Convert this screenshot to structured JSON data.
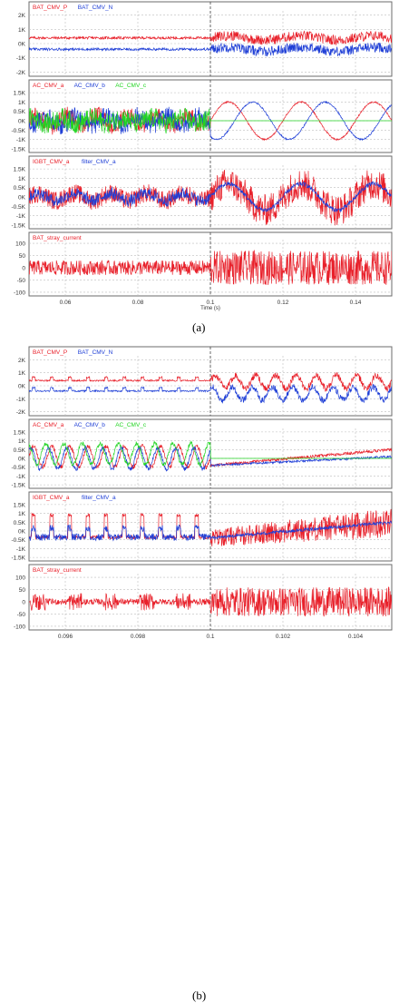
{
  "figures": [
    {
      "caption": "(a)",
      "xaxis": {
        "label": "Time (s)",
        "ticks": [
          "0.06",
          "0.08",
          "0.1",
          "0.12",
          "0.14"
        ],
        "tick_values": [
          0.06,
          0.08,
          0.1,
          0.12,
          0.14
        ],
        "range": [
          0.05,
          0.15
        ],
        "event": 0.1
      },
      "panels": [
        {
          "legend": [
            {
              "text": "BAT_CMV_P",
              "color": "#e8202a"
            },
            {
              "text": "BAT_CMV_N",
              "color": "#1e3ed6"
            }
          ],
          "yticks": [
            "2K",
            "1K",
            "0K",
            "-1K",
            "-2K"
          ],
          "ytick_values": [
            2000,
            1000,
            0,
            -1000,
            -2000
          ],
          "ylim": [
            -2300,
            2300
          ]
        },
        {
          "legend": [
            {
              "text": "AC_CMV_a",
              "color": "#e8202a"
            },
            {
              "text": "AC_CMV_b",
              "color": "#1e3ed6"
            },
            {
              "text": "AC_CMV_c",
              "color": "#22d422"
            }
          ],
          "yticks": [
            "1.5K",
            "1K",
            "0.5K",
            "0K",
            "-0.5K",
            "-1K",
            "-1.5K"
          ],
          "ytick_values": [
            1500,
            1000,
            500,
            0,
            -500,
            -1000,
            -1500
          ],
          "ylim": [
            -1700,
            1700
          ]
        },
        {
          "legend": [
            {
              "text": "IGBT_CMV_a",
              "color": "#e8202a"
            },
            {
              "text": "filter_CMV_a",
              "color": "#1e3ed6"
            }
          ],
          "yticks": [
            "1.5K",
            "1K",
            "0.5K",
            "0K",
            "-0.5K",
            "-1K",
            "-1.5K"
          ],
          "ytick_values": [
            1500,
            1000,
            500,
            0,
            -500,
            -1000,
            -1500
          ],
          "ylim": [
            -1700,
            1700
          ]
        },
        {
          "legend": [
            {
              "text": "BAT_stray_current",
              "color": "#e8202a"
            }
          ],
          "yticks": [
            "100",
            "50",
            "0",
            "-50",
            "-100"
          ],
          "ytick_values": [
            100,
            50,
            0,
            -50,
            -100
          ],
          "ylim": [
            -115,
            115
          ]
        }
      ]
    },
    {
      "caption": "(b)",
      "xaxis": {
        "label": "",
        "ticks": [
          "0.096",
          "0.098",
          "0.1",
          "0.102",
          "0.104"
        ],
        "tick_values": [
          0.096,
          0.098,
          0.1,
          0.102,
          0.104
        ],
        "range": [
          0.095,
          0.105
        ],
        "event": 0.1
      },
      "panels": [
        {
          "legend": [
            {
              "text": "BAT_CMV_P",
              "color": "#e8202a"
            },
            {
              "text": "BAT_CMV_N",
              "color": "#1e3ed6"
            }
          ],
          "yticks": [
            "2K",
            "1K",
            "0K",
            "-1K",
            "-2K"
          ],
          "ytick_values": [
            2000,
            1000,
            0,
            -1000,
            -2000
          ],
          "ylim": [
            -2300,
            2300
          ]
        },
        {
          "legend": [
            {
              "text": "AC_CMV_a",
              "color": "#e8202a"
            },
            {
              "text": "AC_CMV_b",
              "color": "#1e3ed6"
            },
            {
              "text": "AC_CMV_c",
              "color": "#22d422"
            }
          ],
          "yticks": [
            "1.5K",
            "1K",
            "0.5K",
            "0K",
            "-0.5K",
            "-1K",
            "-1.5K"
          ],
          "ytick_values": [
            1500,
            1000,
            500,
            0,
            -500,
            -1000,
            -1500
          ],
          "ylim": [
            -1700,
            1700
          ]
        },
        {
          "legend": [
            {
              "text": "IGBT_CMV_a",
              "color": "#e8202a"
            },
            {
              "text": "filter_CMV_a",
              "color": "#1e3ed6"
            }
          ],
          "yticks": [
            "1.5K",
            "1K",
            "0.5K",
            "0K",
            "-0.5K",
            "-1K",
            "-1.5K"
          ],
          "ytick_values": [
            1500,
            1000,
            500,
            0,
            -500,
            -1000,
            -1500
          ],
          "ylim": [
            -1700,
            1700
          ]
        },
        {
          "legend": [
            {
              "text": "BAT_stray_current",
              "color": "#e8202a"
            }
          ],
          "yticks": [
            "100",
            "50",
            "0",
            "-50",
            "-100"
          ],
          "ytick_values": [
            100,
            50,
            0,
            -50,
            -100
          ],
          "ylim": [
            -115,
            115
          ]
        }
      ]
    }
  ],
  "chart_data": [
    {
      "type": "line",
      "title": "",
      "xlabel": "Time (s)",
      "xlim": [
        0.05,
        0.15
      ],
      "event_x": 0.1,
      "series": [
        {
          "name": "BAT_CMV_P",
          "mean_before": 400,
          "mean_after": 400
        },
        {
          "name": "BAT_CMV_N",
          "mean_before": -400,
          "mean_after": -400
        }
      ],
      "ylim": [
        -2300,
        2300
      ]
    },
    {
      "type": "line",
      "title": "",
      "xlabel": "Time (s)",
      "xlim": [
        0.05,
        0.15
      ],
      "series": [
        {
          "name": "AC_CMV_a",
          "amplitude_after": 1000
        },
        {
          "name": "AC_CMV_b",
          "amplitude_after": 1000
        },
        {
          "name": "AC_CMV_c",
          "value_after": 0
        }
      ],
      "ylim": [
        -1700,
        1700
      ]
    },
    {
      "type": "line",
      "title": "",
      "xlabel": "Time (s)",
      "xlim": [
        0.05,
        0.15
      ],
      "series": [
        {
          "name": "IGBT_CMV_a"
        },
        {
          "name": "filter_CMV_a",
          "amplitude_after": 700
        }
      ],
      "ylim": [
        -1700,
        1700
      ]
    },
    {
      "type": "line",
      "title": "",
      "xlabel": "Time (s)",
      "xlim": [
        0.05,
        0.15
      ],
      "series": [
        {
          "name": "BAT_stray_current",
          "peak_before": 30,
          "peak_after": 70
        }
      ],
      "ylim": [
        -115,
        115
      ]
    },
    {
      "type": "line",
      "title": "",
      "xlabel": "",
      "xlim": [
        0.095,
        0.105
      ],
      "series": [
        {
          "name": "BAT_CMV_P"
        },
        {
          "name": "BAT_CMV_N"
        }
      ],
      "ylim": [
        -2300,
        2300
      ]
    },
    {
      "type": "line",
      "title": "",
      "xlabel": "",
      "xlim": [
        0.095,
        0.105
      ],
      "series": [
        {
          "name": "AC_CMV_a"
        },
        {
          "name": "AC_CMV_b"
        },
        {
          "name": "AC_CMV_c"
        }
      ],
      "ylim": [
        -1700,
        1700
      ]
    },
    {
      "type": "line",
      "title": "",
      "xlabel": "",
      "xlim": [
        0.095,
        0.105
      ],
      "series": [
        {
          "name": "IGBT_CMV_a"
        },
        {
          "name": "filter_CMV_a"
        }
      ],
      "ylim": [
        -1700,
        1700
      ]
    },
    {
      "type": "line",
      "title": "",
      "xlabel": "",
      "xlim": [
        0.095,
        0.105
      ],
      "series": [
        {
          "name": "BAT_stray_current"
        }
      ],
      "ylim": [
        -115,
        115
      ]
    }
  ]
}
